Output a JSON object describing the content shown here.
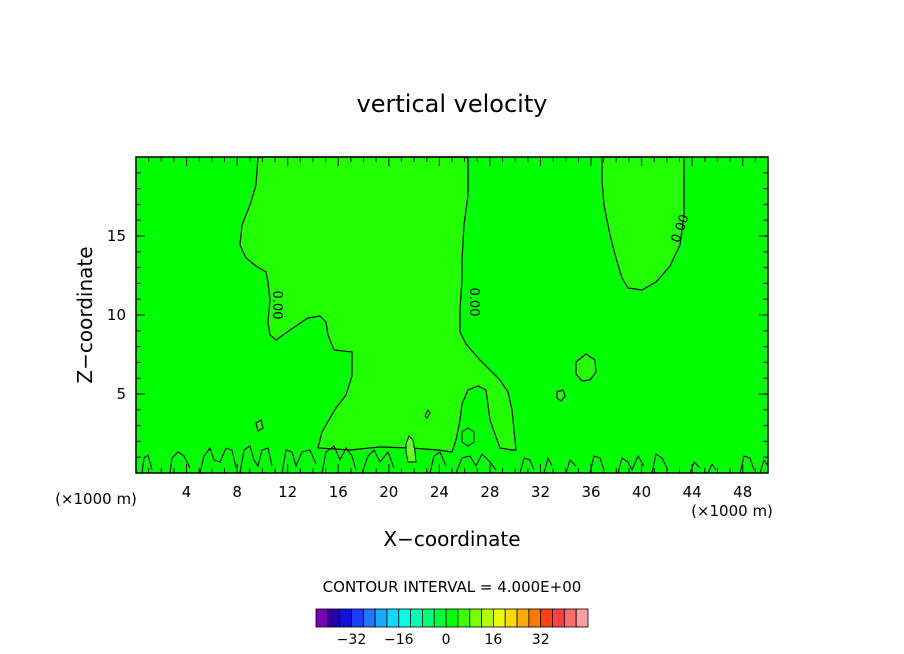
{
  "chart_data": {
    "type": "contour",
    "title": "vertical velocity",
    "xlabel": "X−coordinate",
    "ylabel": "Z−coordinate",
    "x_unit_left": "(×1000 m)",
    "x_unit_right": "(×1000 m)",
    "xlim": [
      0,
      50
    ],
    "ylim": [
      0,
      20
    ],
    "x_ticks": [
      4,
      8,
      12,
      16,
      20,
      24,
      28,
      32,
      36,
      40,
      44,
      48
    ],
    "y_ticks": [
      5,
      10,
      15
    ],
    "contour_interval_text": "CONTOUR INTERVAL = 4.000E+00",
    "contour_labels": [
      "0.00",
      "0.00",
      "0.00"
    ],
    "background_color": "#00ff00",
    "positive_region_color": "#22ff00",
    "colorbar": {
      "colors": [
        "#7a00b4",
        "#2800a6",
        "#1010d8",
        "#1e3cff",
        "#1e78ff",
        "#18aaff",
        "#10d8ff",
        "#00ffe8",
        "#00ffb4",
        "#00ff78",
        "#00ff3c",
        "#00ff00",
        "#3cff00",
        "#78ff00",
        "#b4ff00",
        "#e8ff00",
        "#ffd800",
        "#ffaa00",
        "#ff7800",
        "#ff4010",
        "#ff4040",
        "#ff6e6e",
        "#ff9e9e"
      ],
      "tick_labels": [
        "−32",
        "−16",
        "0",
        "16",
        "32"
      ]
    }
  }
}
